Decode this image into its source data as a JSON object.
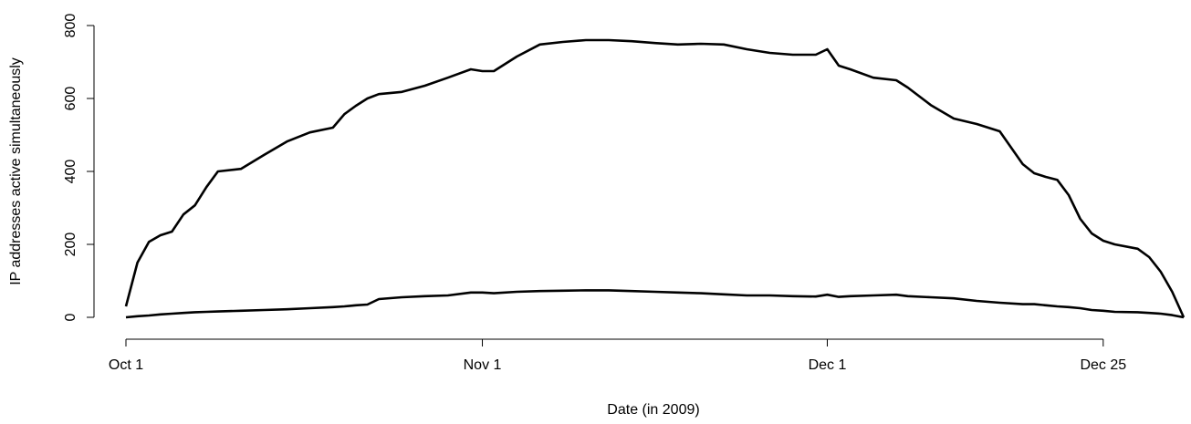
{
  "chart_data": {
    "type": "line",
    "x_label": "Date (in 2009)",
    "y_label": "IP addresses active simultaneously",
    "x": [
      0,
      1,
      2,
      3,
      4,
      5,
      6,
      7,
      8,
      10,
      12,
      14,
      16,
      18,
      19,
      20,
      21,
      22,
      24,
      26,
      28,
      30,
      31,
      32,
      34,
      36,
      38,
      40,
      42,
      44,
      46,
      48,
      50,
      52,
      54,
      56,
      58,
      60,
      61,
      62,
      63,
      65,
      67,
      68,
      70,
      72,
      74,
      76,
      78,
      79,
      80,
      81,
      82,
      83,
      84,
      85,
      86,
      88,
      89,
      90,
      91,
      92
    ],
    "series": [
      {
        "color": "#000000",
        "values": [
          30,
          150,
          207,
          225,
          235,
          282,
          307,
          357,
          400,
          407,
          445,
          482,
          507,
          520,
          557,
          580,
          600,
          612,
          618,
          635,
          657,
          680,
          675,
          675,
          715,
          748,
          755,
          760,
          760,
          757,
          752,
          748,
          750,
          748,
          735,
          725,
          720,
          720,
          735,
          690,
          680,
          657,
          650,
          630,
          582,
          545,
          530,
          510,
          420,
          395,
          385,
          377,
          335,
          270,
          230,
          210,
          200,
          188,
          165,
          125,
          70,
          0
        ]
      },
      {
        "color": "#000000",
        "values": [
          0,
          3,
          5,
          8,
          10,
          12,
          14,
          15,
          16,
          18,
          20,
          22,
          25,
          28,
          30,
          33,
          35,
          50,
          55,
          58,
          60,
          68,
          68,
          66,
          70,
          72,
          73,
          74,
          74,
          72,
          70,
          68,
          66,
          63,
          60,
          60,
          58,
          57,
          62,
          56,
          58,
          60,
          62,
          58,
          55,
          52,
          45,
          40,
          36,
          36,
          33,
          30,
          28,
          25,
          20,
          18,
          15,
          14,
          12,
          10,
          6,
          0
        ]
      }
    ],
    "xlim": [
      0,
      92
    ],
    "xticks": [
      {
        "value": 0,
        "label": "Oct 1"
      },
      {
        "value": 31,
        "label": "Nov 1"
      },
      {
        "value": 61,
        "label": "Dec 1"
      },
      {
        "value": 85,
        "label": "Dec 25"
      }
    ],
    "ylim": [
      0,
      800
    ],
    "yticks": [
      0,
      200,
      400,
      600,
      800
    ]
  }
}
